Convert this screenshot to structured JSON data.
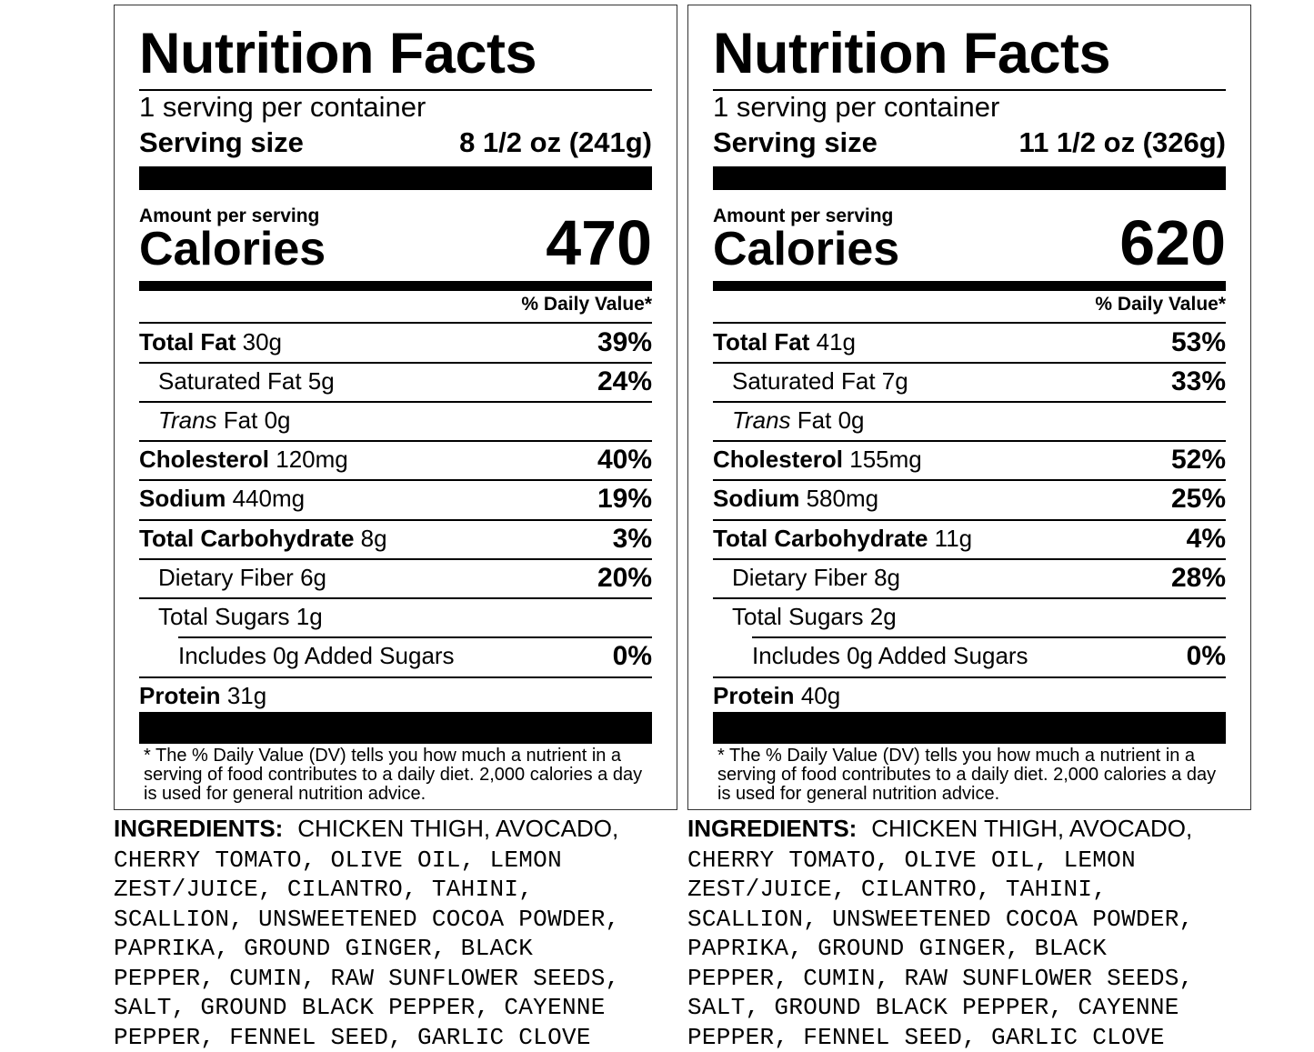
{
  "labels": [
    {
      "title": "Nutrition Facts",
      "servings": "1 serving per container",
      "serving_size_label": "Serving size",
      "serving_size_value": "8 1/2 oz (241g)",
      "amount_per_serving": "Amount per serving",
      "calories_label": "Calories",
      "calories": "470",
      "dv_header": "% Daily Value*",
      "nutrients": {
        "total_fat": {
          "name": "Total Fat",
          "amount": "30g",
          "dv": "39%"
        },
        "saturated_fat": {
          "name": "Saturated Fat",
          "amount": "5g",
          "dv": "24%"
        },
        "trans_fat": {
          "name_italic": "Trans",
          "name": "Fat",
          "amount": "0g"
        },
        "cholesterol": {
          "name": "Cholesterol",
          "amount": "120mg",
          "dv": "40%"
        },
        "sodium": {
          "name": "Sodium",
          "amount": "440mg",
          "dv": "19%"
        },
        "total_carbohydrate": {
          "name": "Total Carbohydrate",
          "amount": "8g",
          "dv": "3%"
        },
        "dietary_fiber": {
          "name": "Dietary Fiber",
          "amount": "6g",
          "dv": "20%"
        },
        "total_sugars": {
          "name": "Total Sugars",
          "amount": "1g"
        },
        "added_sugars": {
          "name": "Includes 0g Added Sugars",
          "dv": "0%"
        },
        "protein": {
          "name": "Protein",
          "amount": "31g"
        }
      },
      "footnote": "* The % Daily Value (DV) tells you how much a nutrient in a serving of food contributes to a daily diet. 2,000 calories a day is used for general nutrition advice.",
      "ingredients_label": "INGREDIENTS:",
      "ingredients_lines": [
        "CHICKEN THIGH, AVOCADO,",
        "CHERRY TOMATO, OLIVE OIL, LEMON",
        "ZEST/JUICE, CILANTRO, TAHINI,",
        "SCALLION, UNSWEETENED COCOA POWDER,",
        "PAPRIKA, GROUND GINGER, BLACK",
        "PEPPER, CUMIN, RAW SUNFLOWER SEEDS,",
        "SALT, GROUND BLACK PEPPER, CAYENNE",
        "PEPPER, FENNEL SEED, GARLIC CLOVE"
      ]
    },
    {
      "title": "Nutrition Facts",
      "servings": "1 serving per container",
      "serving_size_label": "Serving size",
      "serving_size_value": "11 1/2 oz (326g)",
      "amount_per_serving": "Amount per serving",
      "calories_label": "Calories",
      "calories": "620",
      "dv_header": "% Daily Value*",
      "nutrients": {
        "total_fat": {
          "name": "Total Fat",
          "amount": "41g",
          "dv": "53%"
        },
        "saturated_fat": {
          "name": "Saturated Fat",
          "amount": "7g",
          "dv": "33%"
        },
        "trans_fat": {
          "name_italic": "Trans",
          "name": "Fat",
          "amount": "0g"
        },
        "cholesterol": {
          "name": "Cholesterol",
          "amount": "155mg",
          "dv": "52%"
        },
        "sodium": {
          "name": "Sodium",
          "amount": "580mg",
          "dv": "25%"
        },
        "total_carbohydrate": {
          "name": "Total Carbohydrate",
          "amount": "11g",
          "dv": "4%"
        },
        "dietary_fiber": {
          "name": "Dietary Fiber",
          "amount": "8g",
          "dv": "28%"
        },
        "total_sugars": {
          "name": "Total Sugars",
          "amount": "2g"
        },
        "added_sugars": {
          "name": "Includes 0g Added Sugars",
          "dv": "0%"
        },
        "protein": {
          "name": "Protein",
          "amount": "40g"
        }
      },
      "footnote": "* The % Daily Value (DV) tells you how much a nutrient in a serving of food contributes to a daily diet. 2,000 calories a day is used for general nutrition advice.",
      "ingredients_label": "INGREDIENTS:",
      "ingredients_lines": [
        "CHICKEN THIGH, AVOCADO,",
        "CHERRY TOMATO, OLIVE OIL, LEMON",
        "ZEST/JUICE, CILANTRO, TAHINI,",
        "SCALLION, UNSWEETENED COCOA POWDER,",
        "PAPRIKA, GROUND GINGER, BLACK",
        "PEPPER, CUMIN, RAW SUNFLOWER SEEDS,",
        "SALT, GROUND BLACK PEPPER, CAYENNE",
        "PEPPER, FENNEL SEED, GARLIC CLOVE"
      ]
    }
  ]
}
